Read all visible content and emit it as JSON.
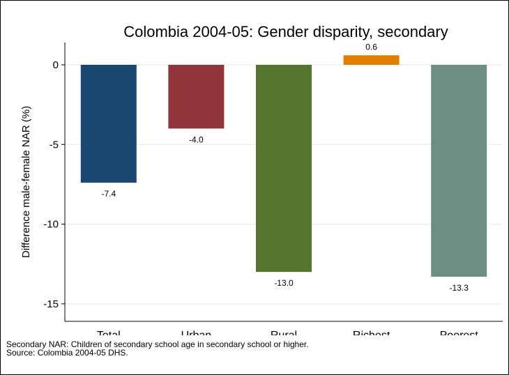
{
  "chart_data": {
    "type": "bar",
    "title": "Colombia 2004-05: Gender disparity, secondary",
    "xlabel": "",
    "ylabel": "Difference male-female NAR (%)",
    "categories": [
      "Total",
      "Urban",
      "Rural",
      "Richest",
      "Poorest"
    ],
    "values": [
      -7.4,
      -4.0,
      -13.0,
      0.6,
      -13.3
    ],
    "value_labels": [
      "-7.4",
      "-4.0",
      "-13.0",
      "0.6",
      "-13.3"
    ],
    "colors": [
      "#1a476f",
      "#90353b",
      "#55752f",
      "#e37e00",
      "#6e8e84"
    ],
    "ylim": [
      -16.1,
      1.4
    ],
    "yticks": [
      0,
      -5,
      -10,
      -15
    ],
    "ytick_labels": [
      "0",
      "-5",
      "-10",
      "-15"
    ],
    "grid": true,
    "legend": "none"
  },
  "notes": {
    "line1": "Secondary NAR: Children of secondary school age in secondary school or higher.",
    "line2": "Source: Colombia 2004-05 DHS."
  }
}
